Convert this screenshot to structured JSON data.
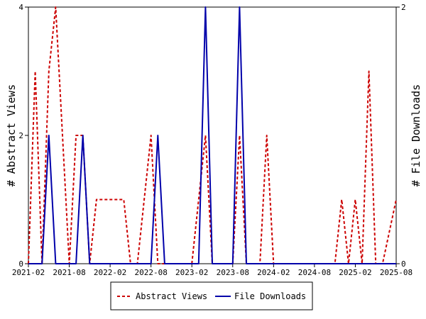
{
  "chart_data": {
    "type": "line",
    "x_ticks": [
      "2021-02",
      "2021-08",
      "2022-02",
      "2022-08",
      "2023-02",
      "2023-08",
      "2024-02",
      "2024-08",
      "2025-02",
      "2025-08"
    ],
    "y_left": {
      "label": "# Abstract Views",
      "ticks": [
        "0",
        "2",
        "4"
      ],
      "lim": [
        0,
        4
      ]
    },
    "y_right": {
      "label": "# File Downloads",
      "ticks": [
        "0",
        "2"
      ],
      "lim": [
        0,
        2
      ]
    },
    "grid": false,
    "legend_position": "bottom",
    "series": [
      {
        "name": "Abstract Views",
        "axis": "left",
        "color": "#cc0000",
        "style": "dashed",
        "points": [
          [
            "2021-02-01",
            0
          ],
          [
            "2021-03-01",
            3
          ],
          [
            "2021-04-01",
            0
          ],
          [
            "2021-05-01",
            3
          ],
          [
            "2021-06-01",
            4
          ],
          [
            "2021-07-01",
            2
          ],
          [
            "2021-08-01",
            0
          ],
          [
            "2021-09-01",
            2
          ],
          [
            "2021-10-01",
            2
          ],
          [
            "2021-11-01",
            0
          ],
          [
            "2021-12-01",
            1
          ],
          [
            "2022-01-01",
            1
          ],
          [
            "2022-02-01",
            1
          ],
          [
            "2022-03-01",
            1
          ],
          [
            "2022-04-01",
            1
          ],
          [
            "2022-05-01",
            0
          ],
          [
            "2022-06-01",
            0
          ],
          [
            "2022-07-01",
            1
          ],
          [
            "2022-08-01",
            2
          ],
          [
            "2022-09-01",
            0
          ],
          [
            "2022-10-01",
            0
          ],
          [
            "2022-11-01",
            0
          ],
          [
            "2022-12-01",
            0
          ],
          [
            "2023-01-01",
            0
          ],
          [
            "2023-02-01",
            0
          ],
          [
            "2023-03-01",
            1
          ],
          [
            "2023-04-01",
            2
          ],
          [
            "2023-05-01",
            0
          ],
          [
            "2023-06-01",
            0
          ],
          [
            "2023-07-01",
            0
          ],
          [
            "2023-08-01",
            0
          ],
          [
            "2023-09-01",
            2
          ],
          [
            "2023-10-01",
            0
          ],
          [
            "2023-11-01",
            0
          ],
          [
            "2023-12-01",
            0
          ],
          [
            "2024-01-01",
            2
          ],
          [
            "2024-02-01",
            0
          ],
          [
            "2024-03-01",
            0
          ],
          [
            "2024-04-01",
            0
          ],
          [
            "2024-05-01",
            0
          ],
          [
            "2024-06-01",
            0
          ],
          [
            "2024-07-01",
            0
          ],
          [
            "2024-08-01",
            0
          ],
          [
            "2024-09-01",
            0
          ],
          [
            "2024-10-01",
            0
          ],
          [
            "2024-11-01",
            0
          ],
          [
            "2024-12-01",
            1
          ],
          [
            "2025-01-01",
            0
          ],
          [
            "2025-02-01",
            1
          ],
          [
            "2025-03-01",
            0
          ],
          [
            "2025-04-01",
            3
          ],
          [
            "2025-05-01",
            0
          ],
          [
            "2025-06-01",
            0
          ],
          [
            "2025-07-01",
            0.5
          ],
          [
            "2025-08-01",
            1
          ]
        ]
      },
      {
        "name": "File Downloads",
        "axis": "right",
        "color": "#0000aa",
        "style": "solid",
        "points": [
          [
            "2021-02-01",
            0
          ],
          [
            "2021-03-01",
            0
          ],
          [
            "2021-04-01",
            0
          ],
          [
            "2021-05-01",
            1
          ],
          [
            "2021-06-01",
            0
          ],
          [
            "2021-07-01",
            0
          ],
          [
            "2021-08-01",
            0
          ],
          [
            "2021-09-01",
            0
          ],
          [
            "2021-10-01",
            1
          ],
          [
            "2021-11-01",
            0
          ],
          [
            "2021-12-01",
            0
          ],
          [
            "2022-01-01",
            0
          ],
          [
            "2022-02-01",
            0
          ],
          [
            "2022-03-01",
            0
          ],
          [
            "2022-04-01",
            0
          ],
          [
            "2022-05-01",
            0
          ],
          [
            "2022-06-01",
            0
          ],
          [
            "2022-07-01",
            0
          ],
          [
            "2022-08-01",
            0
          ],
          [
            "2022-09-01",
            1
          ],
          [
            "2022-10-01",
            0
          ],
          [
            "2022-11-01",
            0
          ],
          [
            "2022-12-01",
            0
          ],
          [
            "2023-01-01",
            0
          ],
          [
            "2023-02-01",
            0
          ],
          [
            "2023-03-01",
            0
          ],
          [
            "2023-04-01",
            2
          ],
          [
            "2023-05-01",
            0
          ],
          [
            "2023-06-01",
            0
          ],
          [
            "2023-07-01",
            0
          ],
          [
            "2023-08-01",
            0
          ],
          [
            "2023-09-01",
            2
          ],
          [
            "2023-10-01",
            0
          ],
          [
            "2023-11-01",
            0
          ],
          [
            "2023-12-01",
            0
          ],
          [
            "2024-01-01",
            0
          ],
          [
            "2024-02-01",
            0
          ],
          [
            "2024-03-01",
            0
          ],
          [
            "2024-04-01",
            0
          ],
          [
            "2024-05-01",
            0
          ],
          [
            "2024-06-01",
            0
          ],
          [
            "2024-07-01",
            0
          ],
          [
            "2024-08-01",
            0
          ],
          [
            "2024-09-01",
            0
          ],
          [
            "2024-10-01",
            0
          ],
          [
            "2024-11-01",
            0
          ],
          [
            "2024-12-01",
            0
          ],
          [
            "2025-01-01",
            0
          ],
          [
            "2025-02-01",
            0
          ],
          [
            "2025-03-01",
            0
          ],
          [
            "2025-04-01",
            0
          ],
          [
            "2025-05-01",
            0
          ],
          [
            "2025-06-01",
            0
          ],
          [
            "2025-07-01",
            0
          ],
          [
            "2025-08-01",
            0
          ]
        ]
      }
    ]
  }
}
